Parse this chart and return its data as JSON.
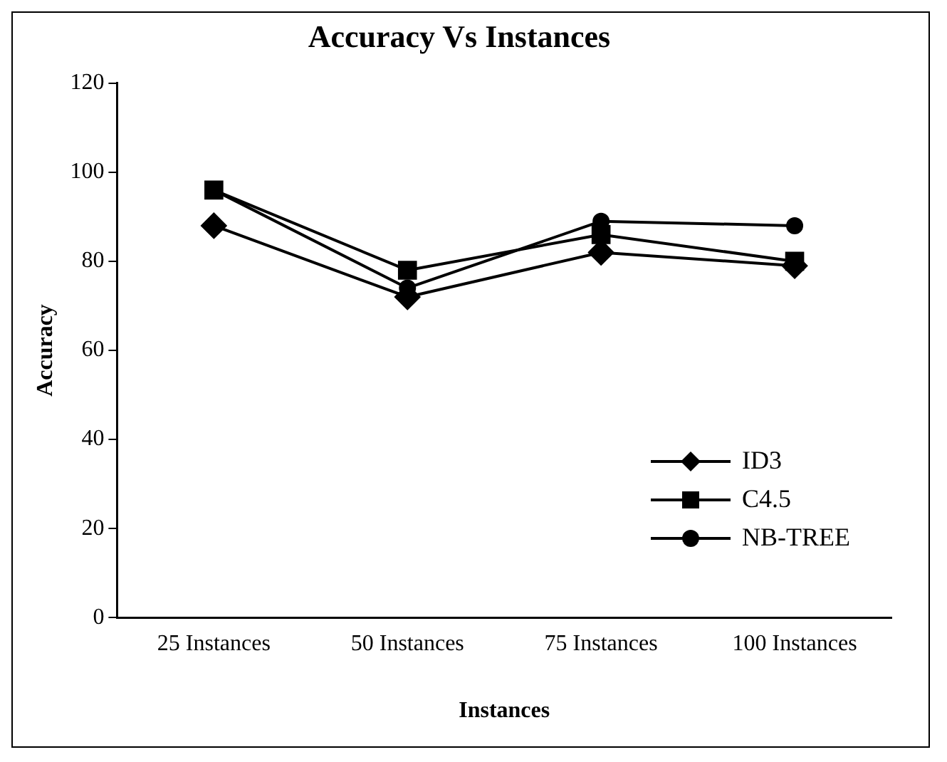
{
  "chart_data": {
    "type": "line",
    "title": "Accuracy Vs Instances",
    "xlabel": "Instances",
    "ylabel": "Accuracy",
    "categories": [
      "25 Instances",
      "50 Instances",
      "75 Instances",
      "100 Instances"
    ],
    "series": [
      {
        "name": "ID3",
        "color": "#000000",
        "values": [
          88,
          72,
          82,
          79
        ],
        "marker": "diamond"
      },
      {
        "name": "C4.5",
        "color": "#000000",
        "values": [
          96,
          78,
          86,
          80
        ],
        "marker": "square"
      },
      {
        "name": "NB-TREE",
        "color": "#000000",
        "values": [
          96,
          74,
          89,
          88
        ],
        "marker": "circle"
      }
    ],
    "ylim": [
      0,
      120
    ],
    "yticks": [
      0,
      20,
      40,
      60,
      80,
      100,
      120
    ],
    "grid": false,
    "legend": "bottom right",
    "line_style": "solid"
  }
}
